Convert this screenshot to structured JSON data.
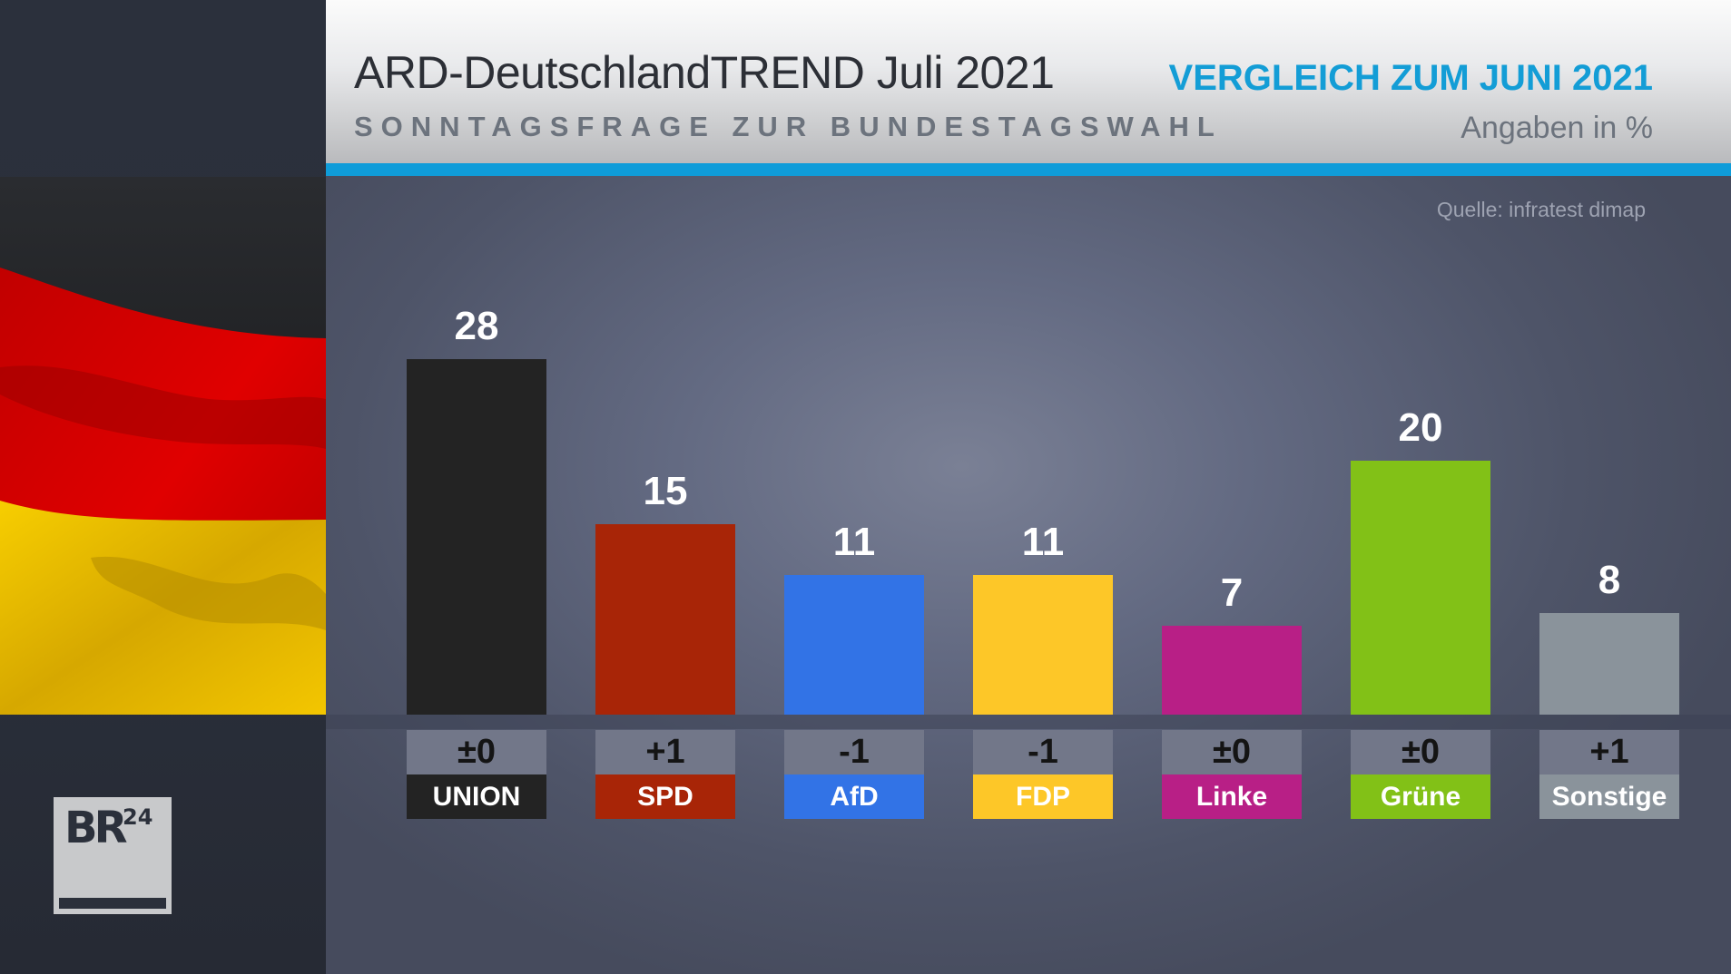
{
  "header": {
    "title": "ARD-DeutschlandTREND Juli 2021",
    "subtitle": "SONNTAGSFRAGE ZUR BUNDESTAGSWAHL",
    "comparison": "VERGLEICH ZUM JUNI 2021",
    "unit": "Angaben in %"
  },
  "source": "Quelle: infratest dimap",
  "logo": {
    "main": "BR",
    "superscript": "24"
  },
  "colors": {
    "accent": "#0f9cd9",
    "title": "#2c2f36",
    "comparison": "#139dd6"
  },
  "chart_data": {
    "type": "bar",
    "title": "ARD-DeutschlandTREND Juli 2021 – Sonntagsfrage zur Bundestagswahl",
    "xlabel": "",
    "ylabel": "Angaben in %",
    "ylim": [
      0,
      28
    ],
    "grid": false,
    "categories": [
      "UNION",
      "SPD",
      "AfD",
      "FDP",
      "Linke",
      "Grüne",
      "Sonstige"
    ],
    "values": [
      28,
      15,
      11,
      11,
      7,
      20,
      8
    ],
    "value_labels": [
      "28",
      "15",
      "11",
      "11",
      "7",
      "20",
      "8"
    ],
    "changes": [
      "±0",
      "+1",
      "-1",
      "-1",
      "±0",
      "±0",
      "+1"
    ],
    "change_reference": "Vergleich zum Juni 2021",
    "colors": [
      "#232323",
      "#a82507",
      "#3273e6",
      "#fdc728",
      "#b81f86",
      "#82c117",
      "#8a939b"
    ]
  }
}
